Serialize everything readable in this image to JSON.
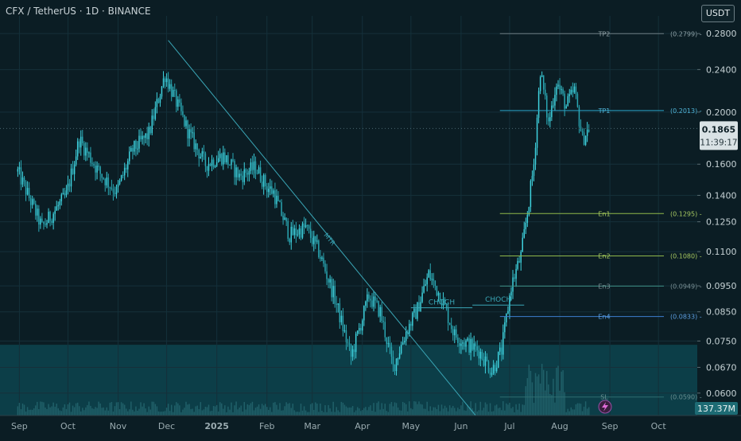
{
  "header": {
    "title": "CFX / TetherUS · 1D · BINANCE"
  },
  "toolbar": {
    "currency_label": "USDT"
  },
  "colors": {
    "background": "#0b1d24",
    "candle": "#37c1d0",
    "sl_zone": "#0e5a66",
    "tp_line": "#2aa4c8",
    "entry_line": "#8fb84a",
    "level_line": "#3f8f85",
    "label_text": "#7a8f94",
    "price_badge": "#d9e2e5"
  },
  "chart_data": {
    "type": "line",
    "title": "CFX / TetherUS · 1D · BINANCE",
    "xlabel": "",
    "ylabel": "",
    "scale": "log",
    "ylim": [
      0.0545,
      0.302
    ],
    "y_ticks": [
      "0.2800",
      "0.2400",
      "0.2000",
      "0.1600",
      "0.1400",
      "0.1250",
      "0.1100",
      "0.0950",
      "0.0850",
      "0.0750",
      "0.0670",
      "0.0600"
    ],
    "x_ticks": [
      "Sep",
      "Oct",
      "Nov",
      "Dec",
      "2025",
      "Feb",
      "Mar",
      "Apr",
      "May",
      "Jun",
      "Jul",
      "Aug",
      "Sep",
      "Oct"
    ],
    "series": [
      {
        "x": [
          "2024-08-31",
          "2024-09-15",
          "2024-09-30",
          "2024-10-08",
          "2024-10-20",
          "2024-10-31",
          "2024-11-10",
          "2024-11-20",
          "2024-11-30",
          "2024-12-08",
          "2024-12-15",
          "2024-12-25",
          "2025-01-05",
          "2025-01-15",
          "2025-01-25",
          "2025-02-01",
          "2025-02-05",
          "2025-02-15",
          "2025-02-25",
          "2025-03-05",
          "2025-03-15",
          "2025-03-25",
          "2025-04-05",
          "2025-04-12",
          "2025-04-20",
          "2025-04-28",
          "2025-05-05",
          "2025-05-12",
          "2025-05-20",
          "2025-05-28",
          "2025-06-05",
          "2025-06-12",
          "2025-06-20",
          "2025-06-26",
          "2025-07-02",
          "2025-07-08",
          "2025-07-12",
          "2025-07-16",
          "2025-07-20",
          "2025-07-25",
          "2025-07-30",
          "2025-08-05",
          "2025-08-10",
          "2025-08-15",
          "2025-08-19"
        ],
        "values": [
          0.155,
          0.122,
          0.14,
          0.178,
          0.155,
          0.142,
          0.17,
          0.182,
          0.235,
          0.205,
          0.182,
          0.16,
          0.166,
          0.152,
          0.158,
          0.145,
          0.142,
          0.118,
          0.122,
          0.11,
          0.09,
          0.07,
          0.091,
          0.085,
          0.067,
          0.078,
          0.086,
          0.1,
          0.09,
          0.077,
          0.074,
          0.072,
          0.066,
          0.072,
          0.095,
          0.108,
          0.13,
          0.16,
          0.24,
          0.19,
          0.228,
          0.205,
          0.22,
          0.178,
          0.1865
        ]
      }
    ],
    "current_price": "0.1865",
    "countdown": "11:39:17",
    "volume_label": "137.37M",
    "annotations": [
      {
        "label": "TP2",
        "value": 0.2799,
        "text": "(0.2799)"
      },
      {
        "label": "TP1",
        "value": 0.2013,
        "text": "(0.2013)"
      },
      {
        "label": "En1",
        "value": 0.1295,
        "text": "(0.1295)"
      },
      {
        "label": "En2",
        "value": 0.108,
        "text": "(0.1080)"
      },
      {
        "label": "En3",
        "value": 0.0949,
        "text": "(0.0949)"
      },
      {
        "label": "En4",
        "value": 0.0833,
        "text": "(0.0833)"
      },
      {
        "label": "SL",
        "value": 0.059,
        "text": "(0.0590)"
      }
    ],
    "drawings": [
      {
        "label": "MTR",
        "from": [
          "2024-12-02",
          0.272
        ],
        "to": [
          "2025-06-10",
          0.0545
        ]
      },
      {
        "label": "CHOCH",
        "from": [
          "2025-05-01",
          0.0865
        ],
        "to": [
          "2025-06-08",
          0.0865
        ]
      },
      {
        "label": "CHOCH",
        "from": [
          "2025-06-08",
          0.0875
        ],
        "to": [
          "2025-07-10",
          0.0875
        ]
      }
    ],
    "sl_zone_max": 0.0738,
    "grid": true
  }
}
